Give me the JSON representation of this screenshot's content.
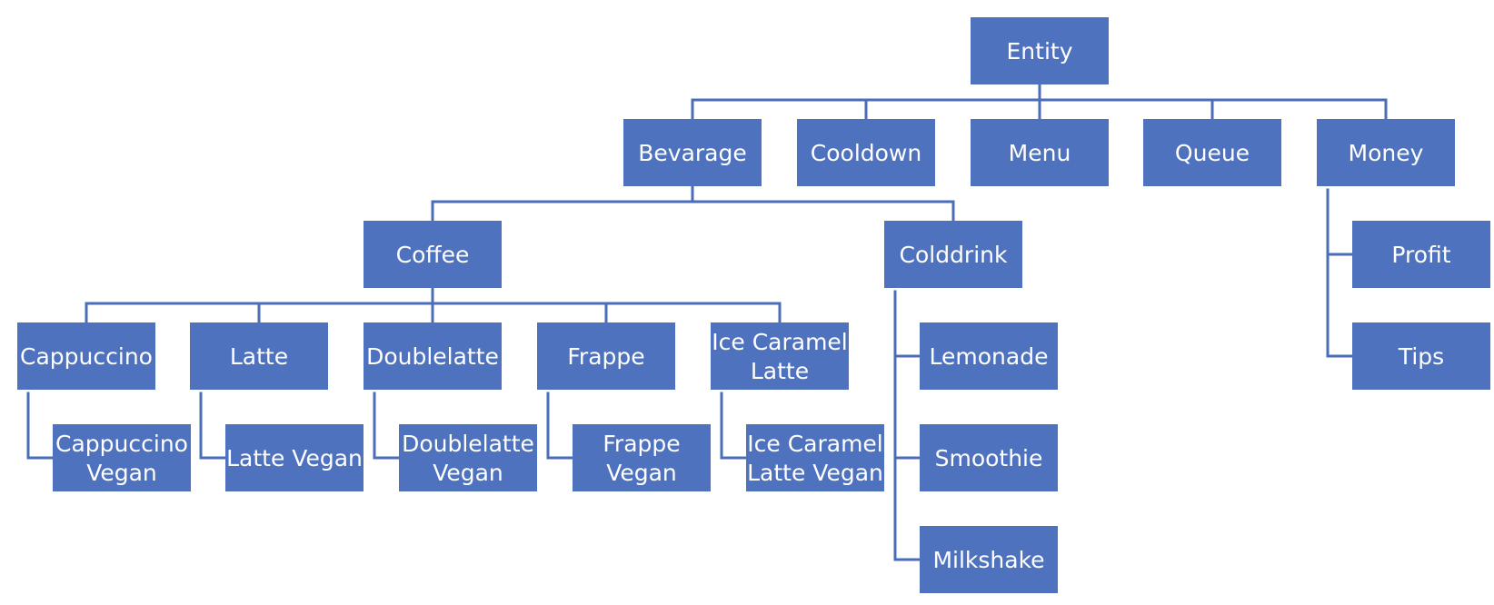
{
  "colors": {
    "node_fill": "#4F72BE",
    "connector": "#4A6DB7",
    "label": "#FFFFFF",
    "background": "#FFFFFF"
  },
  "nodes": {
    "entity": {
      "lines": [
        "Entity"
      ]
    },
    "bevarage": {
      "lines": [
        "Bevarage"
      ]
    },
    "cooldown": {
      "lines": [
        "Cooldown"
      ]
    },
    "menu": {
      "lines": [
        "Menu"
      ]
    },
    "queue": {
      "lines": [
        "Queue"
      ]
    },
    "money": {
      "lines": [
        "Money"
      ]
    },
    "coffee": {
      "lines": [
        "Coffee"
      ]
    },
    "colddrink": {
      "lines": [
        "Colddrink"
      ]
    },
    "profit": {
      "lines": [
        "Profit"
      ]
    },
    "tips": {
      "lines": [
        "Tips"
      ]
    },
    "cappuccino": {
      "lines": [
        "Cappuccino"
      ]
    },
    "latte": {
      "lines": [
        "Latte"
      ]
    },
    "doublelatte": {
      "lines": [
        "Doublelatte"
      ]
    },
    "frappe": {
      "lines": [
        "Frappe"
      ]
    },
    "ice-caramel-latte": {
      "lines": [
        "Ice Caramel",
        "Latte"
      ]
    },
    "lemonade": {
      "lines": [
        "Lemonade"
      ]
    },
    "smoothie": {
      "lines": [
        "Smoothie"
      ]
    },
    "milkshake": {
      "lines": [
        "Milkshake"
      ]
    },
    "cappuccino-vegan": {
      "lines": [
        "Cappuccino",
        "Vegan"
      ]
    },
    "latte-vegan": {
      "lines": [
        "Latte Vegan"
      ]
    },
    "doublelatte-vegan": {
      "lines": [
        "Doublelatte",
        "Vegan"
      ]
    },
    "frappe-vegan": {
      "lines": [
        "Frappe",
        "Vegan"
      ]
    },
    "ice-caramel-latte-vegan": {
      "lines": [
        "Ice Caramel",
        "Latte Vegan"
      ]
    }
  },
  "edges": [
    [
      "entity",
      "bevarage"
    ],
    [
      "entity",
      "cooldown"
    ],
    [
      "entity",
      "menu"
    ],
    [
      "entity",
      "queue"
    ],
    [
      "entity",
      "money"
    ],
    [
      "bevarage",
      "coffee"
    ],
    [
      "bevarage",
      "colddrink"
    ],
    [
      "coffee",
      "cappuccino"
    ],
    [
      "coffee",
      "latte"
    ],
    [
      "coffee",
      "doublelatte"
    ],
    [
      "coffee",
      "frappe"
    ],
    [
      "coffee",
      "ice-caramel-latte"
    ],
    [
      "colddrink",
      "lemonade"
    ],
    [
      "colddrink",
      "smoothie"
    ],
    [
      "colddrink",
      "milkshake"
    ],
    [
      "money",
      "profit"
    ],
    [
      "money",
      "tips"
    ],
    [
      "cappuccino",
      "cappuccino-vegan"
    ],
    [
      "latte",
      "latte-vegan"
    ],
    [
      "doublelatte",
      "doublelatte-vegan"
    ],
    [
      "frappe",
      "frappe-vegan"
    ],
    [
      "ice-caramel-latte",
      "ice-caramel-latte-vegan"
    ]
  ]
}
